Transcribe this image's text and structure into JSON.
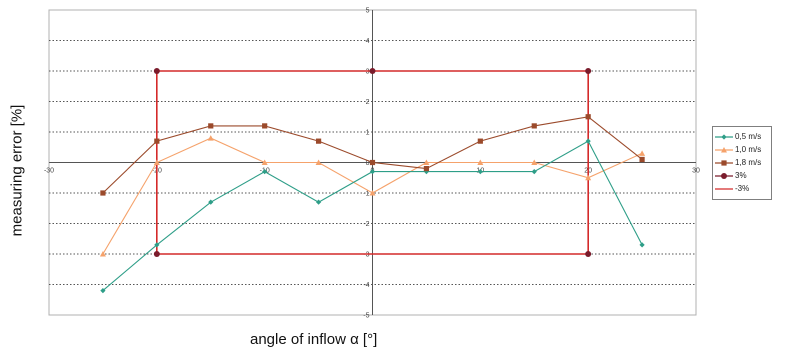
{
  "chart_data": {
    "type": "line",
    "xlabel": "angle of inflow α [°]",
    "ylabel": "measuring error [%]",
    "xlim": [
      -30,
      30
    ],
    "ylim": [
      -5,
      5
    ],
    "xticks": [
      -30,
      -20,
      -10,
      0,
      10,
      20,
      30
    ],
    "yticks": [
      -5,
      -4,
      -3,
      -2,
      -1,
      0,
      1,
      2,
      3,
      4,
      5
    ],
    "grid": "horizontal-dotted",
    "legend_position": "right",
    "series": [
      {
        "name": "0,5 m/s",
        "color": "#2e9e88",
        "marker": "diamond",
        "x": [
          -25,
          -20,
          -15,
          -10,
          -5,
          0,
          5,
          10,
          15,
          20,
          25
        ],
        "y": [
          -4.2,
          -2.7,
          -1.3,
          -0.3,
          -1.3,
          -0.3,
          -0.3,
          -0.3,
          -0.3,
          0.7,
          -2.7
        ]
      },
      {
        "name": "1,0 m/s",
        "color": "#f5a26b",
        "marker": "triangle",
        "x": [
          -25,
          -20,
          -15,
          -10,
          -5,
          0,
          5,
          10,
          15,
          20,
          25
        ],
        "y": [
          -3.0,
          0.0,
          0.8,
          0.0,
          0.0,
          -1.0,
          0.0,
          0.0,
          0.0,
          -0.5,
          0.3
        ]
      },
      {
        "name": "1,8 m/s",
        "color": "#9b4a2b",
        "marker": "square",
        "x": [
          -25,
          -20,
          -15,
          -10,
          -5,
          0,
          5,
          10,
          15,
          20,
          25
        ],
        "y": [
          -1.0,
          0.7,
          1.2,
          1.2,
          0.7,
          0.0,
          -0.2,
          0.7,
          1.2,
          1.5,
          0.1
        ]
      },
      {
        "name": "3%",
        "color": "#7a1c2c",
        "marker": "circle",
        "x": [
          -20,
          0,
          20
        ],
        "y": [
          3,
          3,
          3
        ]
      },
      {
        "name": "-3%",
        "color": "#d42a2a",
        "marker": "none",
        "x": [
          -20,
          -20,
          0,
          20,
          20,
          0,
          -20
        ],
        "y": [
          3,
          -3,
          -3,
          -3,
          3,
          3,
          3
        ]
      }
    ]
  }
}
